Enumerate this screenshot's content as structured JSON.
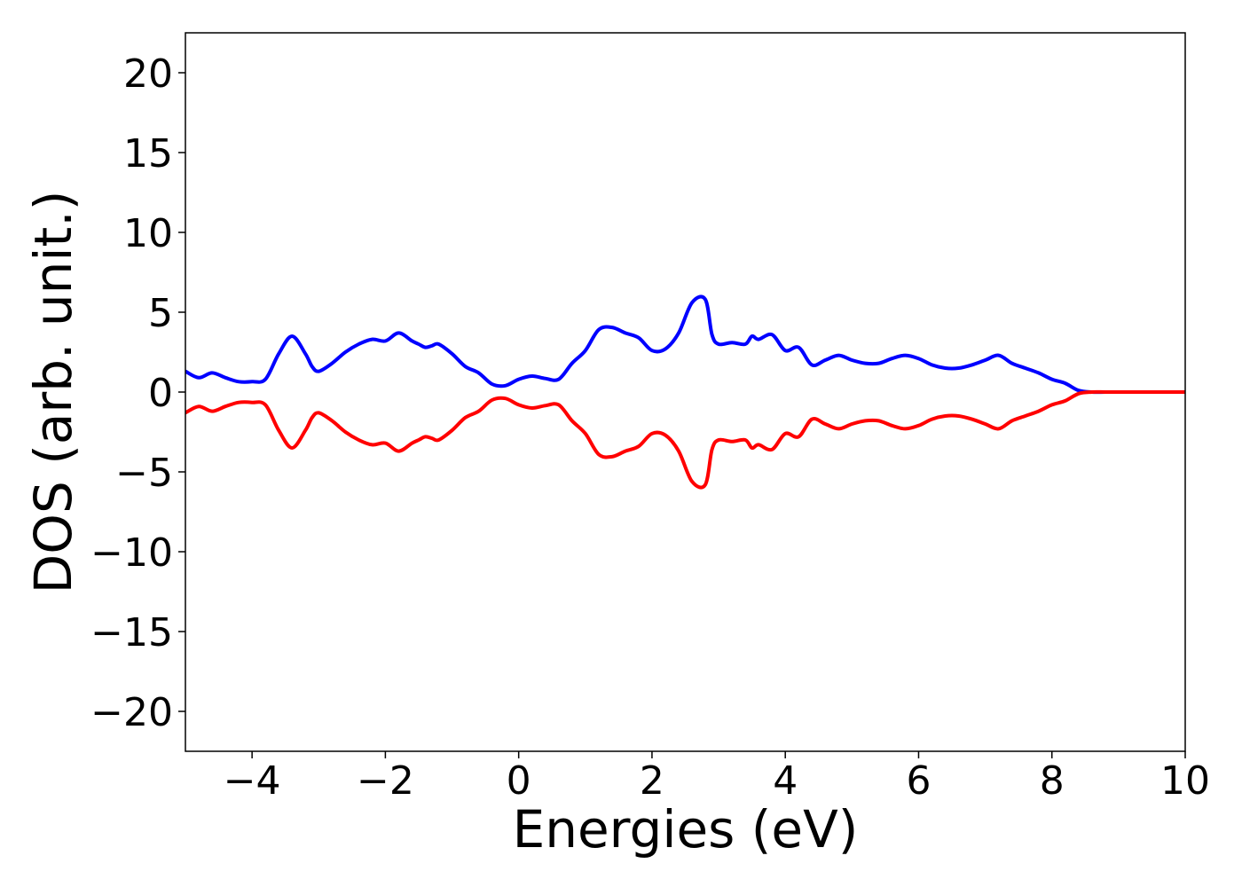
{
  "chart_data": {
    "type": "line",
    "title": "",
    "xlabel": "Energies (eV)",
    "ylabel": "DOS (arb. unit.)",
    "xlim": [
      -5,
      10
    ],
    "ylim": [
      -22.5,
      22.5
    ],
    "xticks": [
      -4,
      -2,
      0,
      2,
      4,
      6,
      8,
      10
    ],
    "xtick_labels": [
      "−4",
      "−2",
      "0",
      "2",
      "4",
      "6",
      "8",
      "10"
    ],
    "yticks": [
      20,
      15,
      10,
      5,
      0,
      -5,
      -10,
      -15,
      -20
    ],
    "ytick_labels": [
      "20",
      "15",
      "10",
      "5",
      "0",
      "−5",
      "−10",
      "−15",
      "−20"
    ],
    "grid": false,
    "legend": "none",
    "x": [
      -5.0,
      -4.8,
      -4.6,
      -4.4,
      -4.2,
      -4.0,
      -3.8,
      -3.6,
      -3.4,
      -3.2,
      -3.1,
      -3.0,
      -2.8,
      -2.6,
      -2.4,
      -2.2,
      -2.0,
      -1.8,
      -1.6,
      -1.5,
      -1.4,
      -1.3,
      -1.2,
      -1.0,
      -0.8,
      -0.6,
      -0.4,
      -0.2,
      0.0,
      0.2,
      0.4,
      0.6,
      0.8,
      1.0,
      1.2,
      1.4,
      1.6,
      1.8,
      2.0,
      2.2,
      2.4,
      2.6,
      2.8,
      2.9,
      3.0,
      3.2,
      3.4,
      3.5,
      3.6,
      3.8,
      4.0,
      4.2,
      4.4,
      4.6,
      4.8,
      5.0,
      5.2,
      5.4,
      5.6,
      5.8,
      6.0,
      6.2,
      6.4,
      6.6,
      6.8,
      7.0,
      7.2,
      7.4,
      7.6,
      7.8,
      8.0,
      8.2,
      8.4,
      8.6,
      8.8,
      9.0,
      9.2,
      9.6,
      10.0
    ],
    "series": [
      {
        "color": "#0000ff",
        "values": [
          1.3,
          0.9,
          1.2,
          0.9,
          0.65,
          0.65,
          0.8,
          2.4,
          3.5,
          2.4,
          1.6,
          1.3,
          1.8,
          2.5,
          3.0,
          3.3,
          3.2,
          3.7,
          3.2,
          3.0,
          2.8,
          2.9,
          3.0,
          2.4,
          1.6,
          1.2,
          0.5,
          0.4,
          0.8,
          1.0,
          0.85,
          0.8,
          1.8,
          2.6,
          3.9,
          4.05,
          3.7,
          3.4,
          2.6,
          2.7,
          3.7,
          5.6,
          5.8,
          3.6,
          3.0,
          3.1,
          3.0,
          3.5,
          3.3,
          3.6,
          2.6,
          2.8,
          1.7,
          2.0,
          2.3,
          2.0,
          1.8,
          1.8,
          2.1,
          2.3,
          2.1,
          1.7,
          1.5,
          1.5,
          1.7,
          2.0,
          2.3,
          1.8,
          1.5,
          1.2,
          0.8,
          0.55,
          0.1,
          0.0,
          0.0,
          0.0,
          0.0,
          0.0,
          0.0
        ]
      },
      {
        "color": "#ff0000",
        "values": [
          -1.3,
          -0.9,
          -1.2,
          -0.9,
          -0.65,
          -0.65,
          -0.8,
          -2.4,
          -3.5,
          -2.4,
          -1.6,
          -1.3,
          -1.8,
          -2.5,
          -3.0,
          -3.3,
          -3.2,
          -3.7,
          -3.2,
          -3.0,
          -2.8,
          -2.9,
          -3.0,
          -2.4,
          -1.6,
          -1.2,
          -0.5,
          -0.4,
          -0.8,
          -1.0,
          -0.85,
          -0.8,
          -1.8,
          -2.6,
          -3.9,
          -4.05,
          -3.7,
          -3.4,
          -2.6,
          -2.7,
          -3.7,
          -5.6,
          -5.8,
          -3.6,
          -3.0,
          -3.1,
          -3.0,
          -3.5,
          -3.3,
          -3.6,
          -2.6,
          -2.8,
          -1.7,
          -2.0,
          -2.3,
          -2.0,
          -1.8,
          -1.8,
          -2.1,
          -2.3,
          -2.1,
          -1.7,
          -1.5,
          -1.5,
          -1.7,
          -2.0,
          -2.3,
          -1.8,
          -1.5,
          -1.2,
          -0.8,
          -0.55,
          -0.1,
          0.0,
          0.0,
          0.0,
          0.0,
          0.0,
          0.0
        ]
      }
    ]
  }
}
